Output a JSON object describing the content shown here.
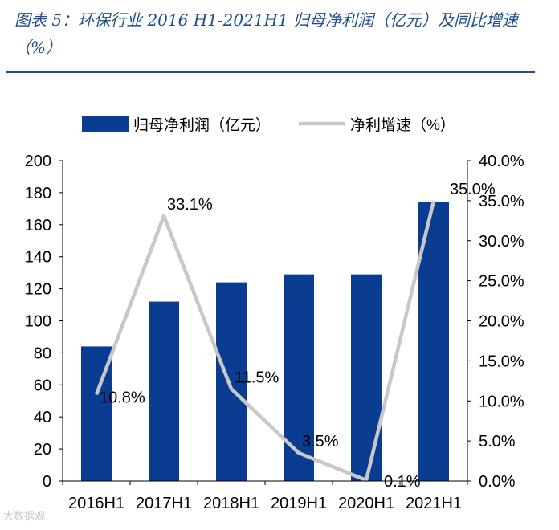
{
  "caption": {
    "title": "图表 5：环保行业 2016 H1-2021H1 归母净利润（亿元）及同比增速（%）"
  },
  "watermark": "大数据观",
  "colors": {
    "bar": "#0a3d91",
    "line": "#c8c8c8",
    "accent": "#1f4e8c"
  },
  "chart_data": {
    "type": "bar",
    "title": "图表 5：环保行业 2016 H1-2021H1 归母净利润（亿元）及同比增速（%）",
    "categories": [
      "2016H1",
      "2017H1",
      "2018H1",
      "2019H1",
      "2020H1",
      "2021H1"
    ],
    "series": [
      {
        "name": "归母净利润（亿元）",
        "type": "bar",
        "axis": "left",
        "values": [
          84,
          112,
          124,
          129,
          129,
          174
        ]
      },
      {
        "name": "净利增速（%）",
        "type": "line",
        "axis": "right",
        "values": [
          10.8,
          33.1,
          11.5,
          3.5,
          0.1,
          35.0
        ],
        "labels": [
          "10.8%",
          "33.1%",
          "11.5%",
          "3.5%",
          "0.1%",
          "35.0%"
        ]
      }
    ],
    "y_left": {
      "min": 0,
      "max": 200,
      "step": 20,
      "ticks": [
        "0",
        "20",
        "40",
        "60",
        "80",
        "100",
        "120",
        "140",
        "160",
        "180",
        "200"
      ]
    },
    "y_right": {
      "min": 0,
      "max": 40,
      "step": 5,
      "ticks": [
        "0.0%",
        "5.0%",
        "10.0%",
        "15.0%",
        "20.0%",
        "25.0%",
        "30.0%",
        "35.0%",
        "40.0%"
      ]
    },
    "legend_position": "top",
    "grid": false
  }
}
